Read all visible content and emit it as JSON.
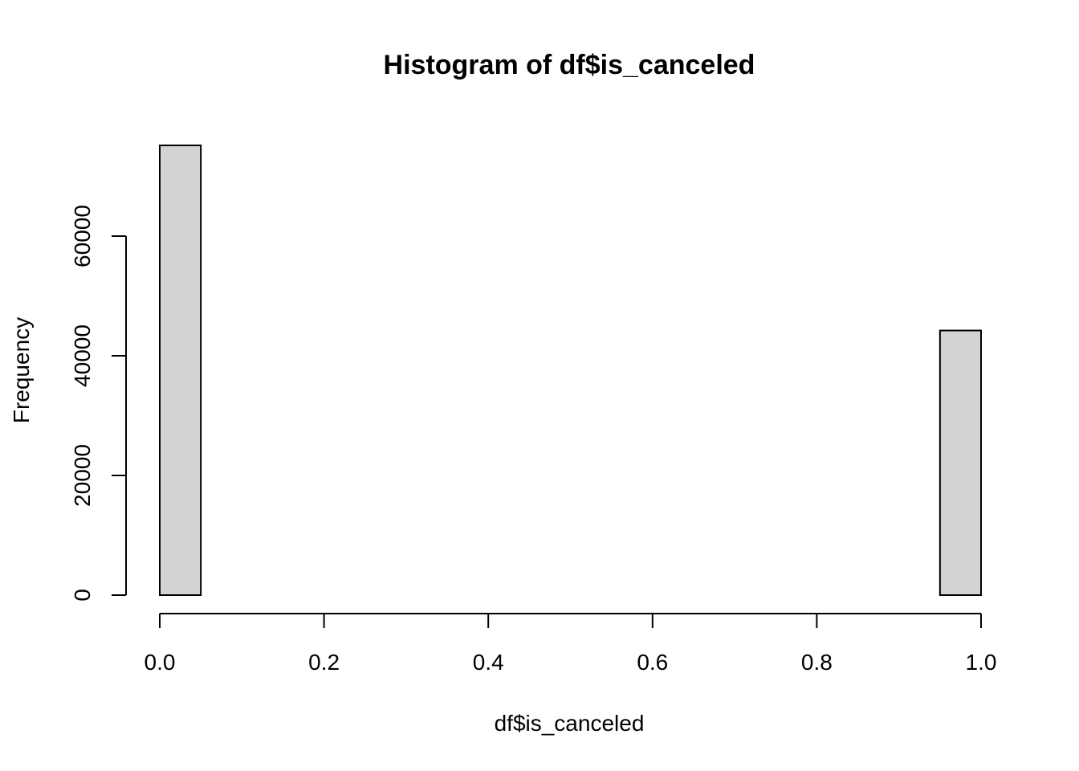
{
  "chart_data": {
    "type": "bar",
    "title": "Histogram of df$is_canceled",
    "xlabel": "df$is_canceled",
    "ylabel": "Frequency",
    "bin_width": 0.05,
    "bins": [
      {
        "start": 0.0,
        "end": 0.05,
        "value": 75166
      },
      {
        "start": 0.05,
        "end": 0.1,
        "value": 0
      },
      {
        "start": 0.1,
        "end": 0.15,
        "value": 0
      },
      {
        "start": 0.15,
        "end": 0.2,
        "value": 0
      },
      {
        "start": 0.2,
        "end": 0.25,
        "value": 0
      },
      {
        "start": 0.25,
        "end": 0.3,
        "value": 0
      },
      {
        "start": 0.3,
        "end": 0.35,
        "value": 0
      },
      {
        "start": 0.35,
        "end": 0.4,
        "value": 0
      },
      {
        "start": 0.4,
        "end": 0.45,
        "value": 0
      },
      {
        "start": 0.45,
        "end": 0.5,
        "value": 0
      },
      {
        "start": 0.5,
        "end": 0.55,
        "value": 0
      },
      {
        "start": 0.55,
        "end": 0.6,
        "value": 0
      },
      {
        "start": 0.6,
        "end": 0.65,
        "value": 0
      },
      {
        "start": 0.65,
        "end": 0.7,
        "value": 0
      },
      {
        "start": 0.7,
        "end": 0.75,
        "value": 0
      },
      {
        "start": 0.75,
        "end": 0.8,
        "value": 0
      },
      {
        "start": 0.8,
        "end": 0.85,
        "value": 0
      },
      {
        "start": 0.85,
        "end": 0.9,
        "value": 0
      },
      {
        "start": 0.9,
        "end": 0.95,
        "value": 0
      },
      {
        "start": 0.95,
        "end": 1.0,
        "value": 44224
      }
    ],
    "xlim": [
      0,
      1
    ],
    "ylim": [
      0,
      75166
    ],
    "x_ticks": [
      0.0,
      0.2,
      0.4,
      0.6,
      0.8,
      1.0
    ],
    "x_tick_labels": [
      "0.0",
      "0.2",
      "0.4",
      "0.6",
      "0.8",
      "1.0"
    ],
    "y_ticks": [
      0,
      20000,
      40000,
      60000
    ],
    "y_tick_labels": [
      "0",
      "20000",
      "40000",
      "60000"
    ],
    "grid": false,
    "bar_fill": "#d3d3d3",
    "bar_stroke": "#000000"
  }
}
